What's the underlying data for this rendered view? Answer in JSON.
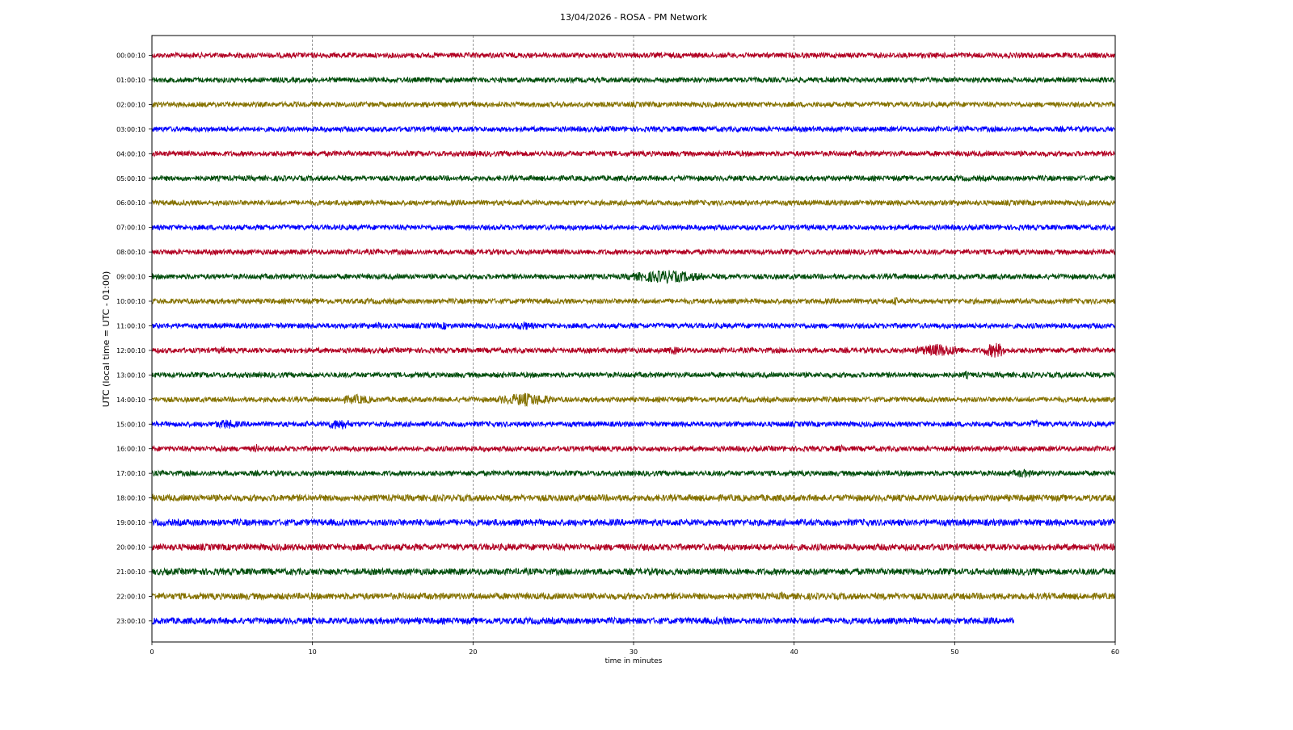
{
  "chart_data": {
    "type": "line",
    "title": "13/04/2026 - ROSA - PM Network",
    "xlabel": "time in minutes",
    "ylabel": "UTC (local time = UTC - 01:00)",
    "xlim": [
      0,
      60
    ],
    "x_ticks": [
      "0",
      "10",
      "20",
      "30",
      "40",
      "50",
      "60"
    ],
    "x_tick_values": [
      0,
      10,
      20,
      30,
      40,
      50,
      60
    ],
    "grid": "vertical dashed lines at x ticks",
    "series_colors": [
      "#b10022",
      "#004d0b",
      "#857200",
      "#0000ff"
    ],
    "rows": [
      {
        "label": "00:00:10",
        "end_minute": 60,
        "events": []
      },
      {
        "label": "01:00:10",
        "end_minute": 60,
        "events": []
      },
      {
        "label": "02:00:10",
        "end_minute": 60,
        "events": []
      },
      {
        "label": "03:00:10",
        "end_minute": 60,
        "events": []
      },
      {
        "label": "04:00:10",
        "end_minute": 60,
        "events": []
      },
      {
        "label": "05:00:10",
        "end_minute": 60,
        "events": []
      },
      {
        "label": "06:00:10",
        "end_minute": 60,
        "events": []
      },
      {
        "label": "07:00:10",
        "end_minute": 60,
        "events": []
      },
      {
        "label": "08:00:10",
        "end_minute": 60,
        "events": []
      },
      {
        "label": "09:00:10",
        "end_minute": 60,
        "events": [
          {
            "start": 29.5,
            "end": 34.5,
            "amplitude": 2.6
          },
          {
            "start": 46,
            "end": 46.5,
            "amplitude": 1.4
          },
          {
            "start": 54.3,
            "end": 54.8,
            "amplitude": 1.3
          }
        ]
      },
      {
        "label": "10:00:10",
        "end_minute": 60,
        "events": [
          {
            "start": 46,
            "end": 46.6,
            "amplitude": 1.8
          },
          {
            "start": 50.8,
            "end": 51.4,
            "amplitude": 1.3
          }
        ]
      },
      {
        "label": "11:00:10",
        "end_minute": 60,
        "events": [
          {
            "start": 13.5,
            "end": 15,
            "amplitude": 1.5
          },
          {
            "start": 17.8,
            "end": 18.6,
            "amplitude": 1.6
          },
          {
            "start": 22.3,
            "end": 24,
            "amplitude": 1.8
          },
          {
            "start": 52,
            "end": 52.4,
            "amplitude": 1.4
          }
        ]
      },
      {
        "label": "12:00:10",
        "end_minute": 60,
        "events": [
          {
            "start": 4.2,
            "end": 4.6,
            "amplitude": 1.6
          },
          {
            "start": 32,
            "end": 33,
            "amplitude": 1.7
          },
          {
            "start": 47.5,
            "end": 50.5,
            "amplitude": 2.6
          },
          {
            "start": 51.8,
            "end": 53.3,
            "amplitude": 3.2
          }
        ]
      },
      {
        "label": "13:00:10",
        "end_minute": 60,
        "events": [
          {
            "start": 50.5,
            "end": 50.9,
            "amplitude": 1.7
          },
          {
            "start": 56.5,
            "end": 56.9,
            "amplitude": 1.5
          }
        ]
      },
      {
        "label": "14:00:10",
        "end_minute": 60,
        "events": [
          {
            "start": 6.8,
            "end": 7.5,
            "amplitude": 1.4
          },
          {
            "start": 11.5,
            "end": 14,
            "amplitude": 2
          },
          {
            "start": 21.5,
            "end": 25,
            "amplitude": 2.7
          }
        ]
      },
      {
        "label": "15:00:10",
        "end_minute": 60,
        "events": [
          {
            "start": 3.8,
            "end": 5.5,
            "amplitude": 2
          },
          {
            "start": 10.8,
            "end": 12.5,
            "amplitude": 2.3
          },
          {
            "start": 54.5,
            "end": 55.5,
            "amplitude": 1.8
          }
        ]
      },
      {
        "label": "16:00:10",
        "end_minute": 60,
        "events": [
          {
            "start": 4,
            "end": 4.6,
            "amplitude": 1.6
          },
          {
            "start": 6.3,
            "end": 6.7,
            "amplitude": 2
          },
          {
            "start": 42.5,
            "end": 43.3,
            "amplitude": 1.6
          }
        ]
      },
      {
        "label": "17:00:10",
        "end_minute": 60,
        "events": [
          {
            "start": 53.5,
            "end": 55,
            "amplitude": 1.8
          },
          {
            "start": 43.5,
            "end": 44,
            "amplitude": 1.4
          }
        ]
      },
      {
        "label": "18:00:10",
        "end_minute": 60,
        "events": []
      },
      {
        "label": "19:00:10",
        "end_minute": 60,
        "events": []
      },
      {
        "label": "20:00:10",
        "end_minute": 60,
        "events": []
      },
      {
        "label": "21:00:10",
        "end_minute": 60,
        "events": []
      },
      {
        "label": "22:00:10",
        "end_minute": 60,
        "events": [
          {
            "start": 39,
            "end": 39.4,
            "amplitude": 1.4
          }
        ]
      },
      {
        "label": "23:00:10",
        "end_minute": 53.7,
        "events": [
          {
            "start": 34,
            "end": 37,
            "amplitude": 1.3
          }
        ]
      }
    ]
  }
}
